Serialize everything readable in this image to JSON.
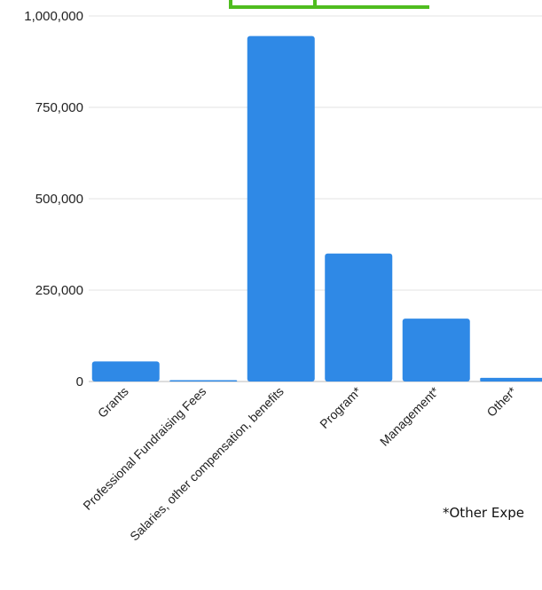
{
  "chart_data": {
    "type": "bar",
    "categories": [
      "Grants",
      "Professional Fundraising Fees",
      "Salaries, other compensation, benefits",
      "Program*",
      "Management*",
      "Other*"
    ],
    "values": [
      55000,
      2000,
      945000,
      350000,
      172000,
      10000
    ],
    "ylim": [
      0,
      1000000
    ],
    "yticks": [
      0,
      250000,
      500000,
      750000,
      1000000
    ],
    "ytick_labels": [
      "0",
      "250,000",
      "500,000",
      "750,000",
      "1,000,000"
    ],
    "grid": true,
    "bar_color": "#2f89e6",
    "accent_color": "#4fbd1f",
    "footnote": "*Other Expe"
  }
}
